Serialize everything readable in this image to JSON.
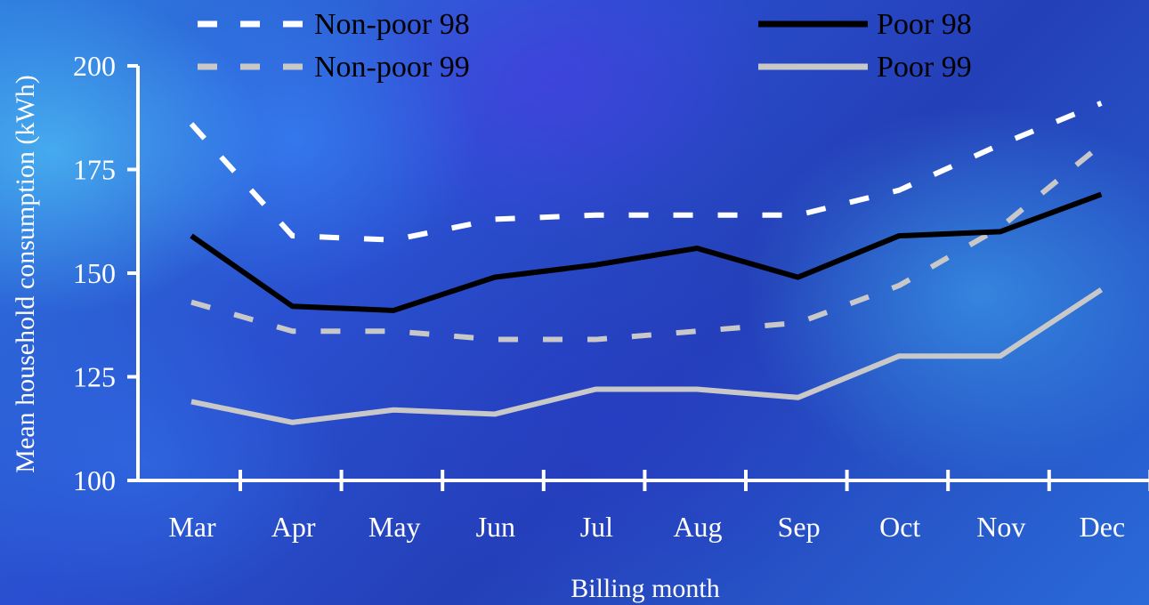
{
  "chart_data": {
    "type": "line",
    "xlabel": "Billing month",
    "ylabel": "Mean household consumption (kWh)",
    "categories": [
      "Mar",
      "Apr",
      "May",
      "Jun",
      "Jul",
      "Aug",
      "Sep",
      "Oct",
      "Nov",
      "Dec"
    ],
    "ylim": [
      100,
      200
    ],
    "yticks": [
      "100",
      "125",
      "150",
      "175",
      "200"
    ],
    "grid": false,
    "legend_position": "top",
    "series": [
      {
        "name": "Non-poor 98",
        "color": "#ffffff",
        "style": "dashed",
        "values": [
          186,
          159,
          158,
          163,
          164,
          164,
          164,
          170,
          181,
          191
        ]
      },
      {
        "name": "Non-poor 99",
        "color": "#c8c8c8",
        "style": "dashed",
        "values": [
          143,
          136,
          136,
          134,
          134,
          136,
          138,
          147,
          161,
          181
        ]
      },
      {
        "name": "Poor 98",
        "color": "#000000",
        "style": "solid",
        "values": [
          159,
          142,
          141,
          149,
          152,
          156,
          149,
          159,
          160,
          169
        ]
      },
      {
        "name": "Poor 99",
        "color": "#c8c8c8",
        "style": "solid",
        "values": [
          119,
          114,
          117,
          116,
          122,
          122,
          120,
          130,
          130,
          146
        ]
      }
    ]
  }
}
